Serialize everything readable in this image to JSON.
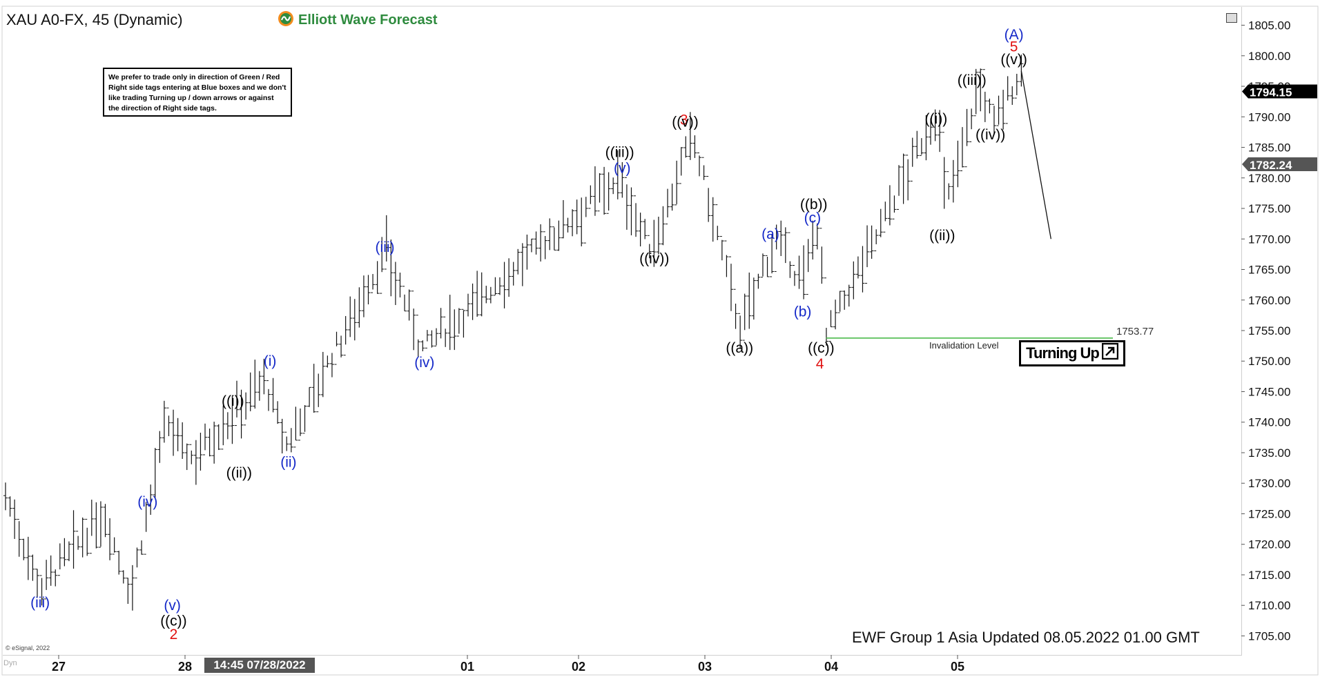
{
  "header": {
    "title": "XAU A0-FX, 45 (Dynamic)",
    "brand": "Elliott Wave Forecast",
    "brand_icon": "ewf-logo-icon"
  },
  "note": "We prefer to trade only in direction of Green / Red Right side tags entering at Blue boxes and we don't like trading Turning up / down arrows or against the direction of Right side tags.",
  "turning_label": "Turning Up",
  "footer": {
    "update_text": "EWF Group 1 Asia Updated 08.05.2022 01.00 GMT",
    "copyright": "© eSignal, 2022",
    "dyn": "Dyn",
    "cursor_time": "14:45 07/28/2022"
  },
  "colors": {
    "wave_blue": "#1428c8",
    "wave_red": "#e01010",
    "wave_black": "#000000",
    "invalidation_green": "#3cb43c",
    "brand_green": "#2e8b3e"
  },
  "chart_data": {
    "type": "bar",
    "title": "XAU A0-FX, 45 (Dynamic)",
    "x_ticks": [
      "27",
      "28",
      "01",
      "02",
      "03",
      "04",
      "05"
    ],
    "y_ticks": [
      1705,
      1710,
      1715,
      1720,
      1725,
      1730,
      1735,
      1740,
      1745,
      1750,
      1755,
      1760,
      1765,
      1770,
      1775,
      1780,
      1785,
      1790,
      1795,
      1800,
      1805
    ],
    "ylim": [
      1702,
      1808
    ],
    "price_tags": [
      {
        "label": "1794.15",
        "value": 1794.15,
        "color": "#000000"
      },
      {
        "label": "1782.24",
        "value": 1782.24,
        "color": "#555555"
      }
    ],
    "invalidation": {
      "label": "Invalidation Level",
      "value": 1753.77,
      "value_label": "1753.77"
    },
    "wave_path_xy": [
      [
        0.0,
        1728.0
      ],
      [
        0.028,
        1713.0
      ],
      [
        0.08,
        1725.0
      ],
      [
        0.101,
        1712.0
      ],
      [
        0.13,
        1740.0
      ],
      [
        0.15,
        1734.0
      ],
      [
        0.21,
        1747.0
      ],
      [
        0.227,
        1736.0
      ],
      [
        0.308,
        1768.0
      ],
      [
        0.337,
        1752.0
      ],
      [
        0.495,
        1780.0
      ],
      [
        0.523,
        1768.0
      ],
      [
        0.556,
        1787.0
      ],
      [
        0.595,
        1755.0
      ],
      [
        0.622,
        1770.0
      ],
      [
        0.645,
        1763.0
      ],
      [
        0.658,
        1773.0
      ],
      [
        0.664,
        1754.0
      ],
      [
        0.754,
        1791.0
      ],
      [
        0.761,
        1775.0
      ],
      [
        0.787,
        1795.0
      ],
      [
        0.8,
        1789.0
      ],
      [
        0.822,
        1797.5
      ]
    ],
    "projection": [
      [
        0.822,
        1797.5
      ],
      [
        0.846,
        1770.0
      ]
    ],
    "wave_labels": [
      {
        "text": "(iii)",
        "x": 0.028,
        "y": 1710.5,
        "color": "blue"
      },
      {
        "text": "(iv)",
        "x": 0.115,
        "y": 1727.0,
        "color": "blue"
      },
      {
        "text": "(v)",
        "x": 0.135,
        "y": 1710.0,
        "color": "blue"
      },
      {
        "text": "((c))",
        "x": 0.136,
        "y": 1707.5,
        "color": "black"
      },
      {
        "text": "2",
        "x": 0.136,
        "y": 1705.3,
        "color": "red"
      },
      {
        "text": "((i))",
        "x": 0.184,
        "y": 1743.5,
        "color": "black"
      },
      {
        "text": "((ii))",
        "x": 0.189,
        "y": 1731.7,
        "color": "black"
      },
      {
        "text": "(i)",
        "x": 0.214,
        "y": 1750.0,
        "color": "blue"
      },
      {
        "text": "(ii)",
        "x": 0.229,
        "y": 1733.5,
        "color": "blue"
      },
      {
        "text": "(iii)",
        "x": 0.307,
        "y": 1768.7,
        "color": "blue"
      },
      {
        "text": "(iv)",
        "x": 0.339,
        "y": 1749.8,
        "color": "blue"
      },
      {
        "text": "((iii))",
        "x": 0.497,
        "y": 1784.2,
        "color": "black"
      },
      {
        "text": "(v)",
        "x": 0.499,
        "y": 1781.6,
        "color": "blue"
      },
      {
        "text": "((iv))",
        "x": 0.525,
        "y": 1766.8,
        "color": "black"
      },
      {
        "text": "3",
        "x": 0.549,
        "y": 1789.5,
        "color": "red"
      },
      {
        "text": "((v))",
        "x": 0.55,
        "y": 1789.2,
        "color": "black"
      },
      {
        "text": "((a))",
        "x": 0.594,
        "y": 1752.2,
        "color": "black"
      },
      {
        "text": "(a)",
        "x": 0.619,
        "y": 1770.8,
        "color": "blue"
      },
      {
        "text": "(b)",
        "x": 0.645,
        "y": 1758.1,
        "color": "blue"
      },
      {
        "text": "((b))",
        "x": 0.654,
        "y": 1775.7,
        "color": "black"
      },
      {
        "text": "(c)",
        "x": 0.653,
        "y": 1773.5,
        "color": "blue"
      },
      {
        "text": "((c))",
        "x": 0.66,
        "y": 1752.2,
        "color": "black"
      },
      {
        "text": "4",
        "x": 0.659,
        "y": 1749.6,
        "color": "red"
      },
      {
        "text": "((i))",
        "x": 0.753,
        "y": 1789.7,
        "color": "black"
      },
      {
        "text": "((ii))",
        "x": 0.758,
        "y": 1770.6,
        "color": "black"
      },
      {
        "text": "((iii))",
        "x": 0.782,
        "y": 1796.0,
        "color": "black"
      },
      {
        "text": "((iv))",
        "x": 0.797,
        "y": 1787.1,
        "color": "black"
      },
      {
        "text": "((v))",
        "x": 0.816,
        "y": 1799.4,
        "color": "black"
      },
      {
        "text": "5",
        "x": 0.816,
        "y": 1801.5,
        "color": "red"
      },
      {
        "text": "(A)",
        "x": 0.816,
        "y": 1803.5,
        "color": "blue"
      }
    ]
  }
}
